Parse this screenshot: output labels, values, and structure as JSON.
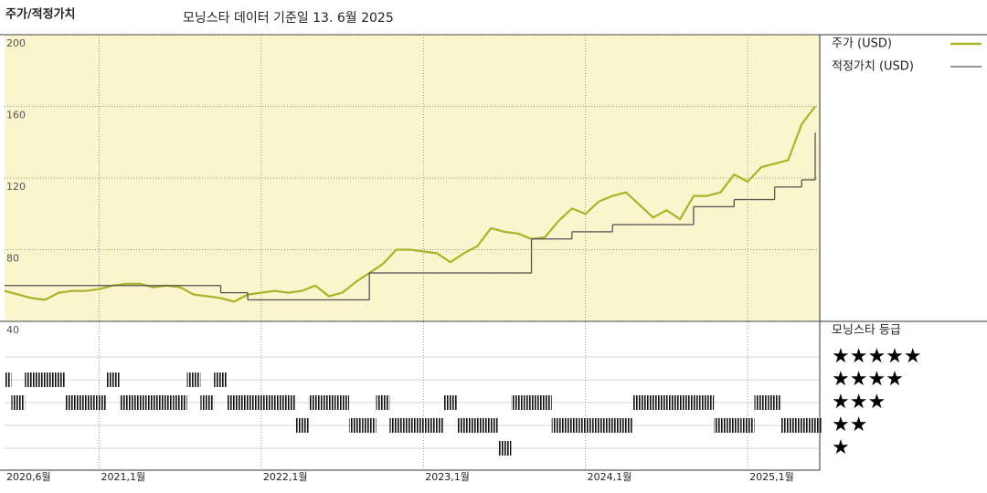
{
  "chart_data": {
    "type": "line",
    "title": "주가/적정가치",
    "subtitle": "모닝스타 데이터 기준일 13. 6월 2025",
    "x": [
      "2020-06",
      "2020-07",
      "2020-08",
      "2020-09",
      "2020-10",
      "2020-11",
      "2020-12",
      "2021-01",
      "2021-02",
      "2021-03",
      "2021-04",
      "2021-05",
      "2021-06",
      "2021-07",
      "2021-08",
      "2021-09",
      "2021-10",
      "2021-11",
      "2021-12",
      "2022-01",
      "2022-02",
      "2022-03",
      "2022-04",
      "2022-05",
      "2022-06",
      "2022-07",
      "2022-08",
      "2022-09",
      "2022-10",
      "2022-11",
      "2022-12",
      "2023-01",
      "2023-02",
      "2023-03",
      "2023-04",
      "2023-05",
      "2023-06",
      "2023-07",
      "2023-08",
      "2023-09",
      "2023-10",
      "2023-11",
      "2023-12",
      "2024-01",
      "2024-02",
      "2024-03",
      "2024-04",
      "2024-05",
      "2024-06",
      "2024-07",
      "2024-08",
      "2024-09",
      "2024-10",
      "2024-11",
      "2024-12",
      "2025-01",
      "2025-02",
      "2025-03",
      "2025-04",
      "2025-05",
      "2025-06"
    ],
    "series": [
      {
        "name": "주가 (USD)",
        "color": "#a9b42b",
        "values": [
          57,
          55,
          53,
          52,
          56,
          57,
          57,
          58,
          60,
          61,
          61,
          59,
          60,
          59,
          55,
          54,
          53,
          51,
          55,
          56,
          57,
          56,
          57,
          60,
          54,
          56,
          62,
          67,
          72,
          80,
          80,
          79,
          78,
          73,
          78,
          82,
          92,
          90,
          89,
          86,
          87,
          96,
          103,
          100,
          107,
          110,
          112,
          105,
          98,
          102,
          97,
          110,
          110,
          112,
          122,
          118,
          126,
          128,
          130,
          150,
          160
        ]
      },
      {
        "name": "적정가치 (USD)",
        "color": "#555555",
        "step": true,
        "values": [
          60,
          60,
          60,
          60,
          60,
          60,
          60,
          60,
          60,
          60,
          60,
          60,
          60,
          60,
          60,
          60,
          56,
          56,
          52,
          52,
          52,
          52,
          52,
          52,
          52,
          52,
          52,
          67,
          67,
          67,
          67,
          67,
          67,
          67,
          67,
          67,
          67,
          67,
          67,
          86,
          86,
          86,
          90,
          90,
          90,
          94,
          94,
          94,
          94,
          94,
          94,
          104,
          104,
          104,
          108,
          108,
          108,
          115,
          115,
          119,
          145
        ]
      }
    ],
    "ylim": [
      40,
      200
    ],
    "yticks": [
      40,
      80,
      120,
      160,
      200
    ],
    "xticks": [
      {
        "value": "2020-06",
        "label": "2020,6월"
      },
      {
        "value": "2021-01",
        "label": "2021,1월"
      },
      {
        "value": "2022-01",
        "label": "2022,1월"
      },
      {
        "value": "2023-01",
        "label": "2023,1월"
      },
      {
        "value": "2024-01",
        "label": "2024,1월"
      },
      {
        "value": "2025-01",
        "label": "2025,1월"
      }
    ],
    "grid": true,
    "background": "#faf5cc",
    "rating": {
      "title": "모닝스타 등급",
      "levels": [
        {
          "value": 5,
          "label": "★★★★★"
        },
        {
          "value": 4,
          "label": "★★★★"
        },
        {
          "value": 3,
          "label": "★★★"
        },
        {
          "value": 2,
          "label": "★★"
        },
        {
          "value": 1,
          "label": "★"
        }
      ],
      "values": [
        4,
        3,
        4,
        4,
        4,
        3,
        3,
        3,
        4,
        3,
        3,
        3,
        3,
        3,
        4,
        3,
        4,
        3,
        3,
        3,
        3,
        3,
        2,
        3,
        3,
        3,
        2,
        2,
        3,
        2,
        2,
        2,
        2,
        3,
        2,
        2,
        2,
        1,
        3,
        3,
        3,
        2,
        2,
        2,
        2,
        2,
        2,
        3,
        3,
        3,
        3,
        3,
        3,
        2,
        2,
        2,
        3,
        3,
        2,
        2,
        2
      ]
    }
  }
}
